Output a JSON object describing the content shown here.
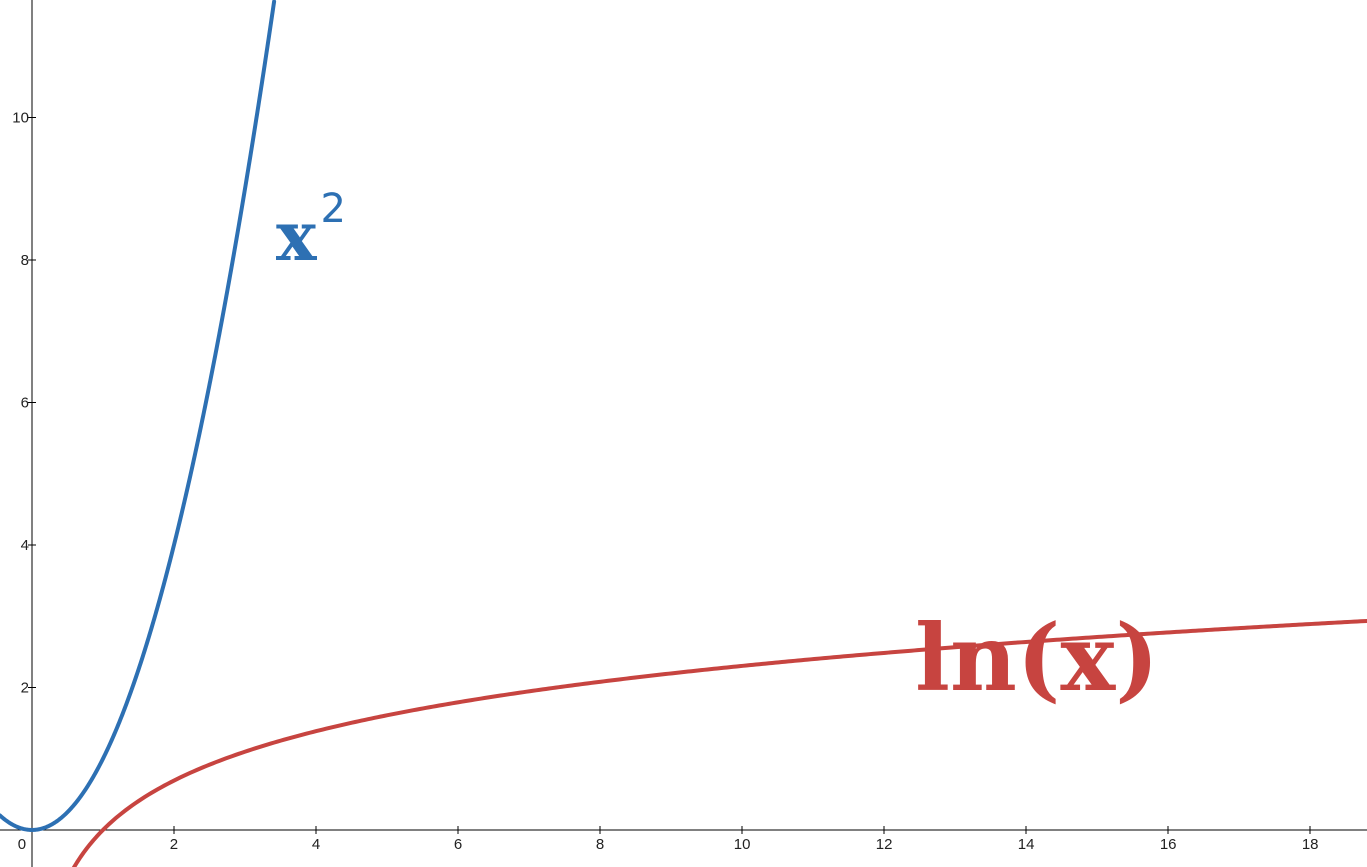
{
  "chart_data": {
    "type": "line",
    "title": "",
    "xlabel": "",
    "ylabel": "",
    "xlim": [
      -0.45,
      18.8
    ],
    "ylim": [
      -0.52,
      11.65
    ],
    "x_ticks": [
      "0",
      "2",
      "4",
      "6",
      "8",
      "10",
      "12",
      "14",
      "16",
      "18"
    ],
    "y_ticks": [
      "2",
      "4",
      "6",
      "8",
      "10"
    ],
    "grid": false,
    "legend": "none",
    "series": [
      {
        "label_base": "x",
        "label_sup": "2",
        "function": "x^2",
        "color": "#2d70b3",
        "x": [
          -0.45,
          -0.3,
          -0.15,
          0,
          0.25,
          0.5,
          0.75,
          1,
          1.25,
          1.5,
          1.75,
          2,
          2.25,
          2.5,
          2.75,
          3,
          3.25,
          3.41
        ],
        "y": [
          0.2,
          0.09,
          0.02,
          0,
          0.06,
          0.25,
          0.56,
          1,
          1.56,
          2.25,
          3.06,
          4,
          5.06,
          6.25,
          7.56,
          9,
          10.56,
          11.63
        ]
      },
      {
        "label": "ln(x)",
        "function": "ln(x)",
        "color": "#c74440",
        "x": [
          0.59,
          0.7,
          0.8,
          1,
          1.5,
          2,
          3,
          4,
          5,
          6,
          8,
          10,
          12,
          14,
          16,
          18,
          18.8
        ],
        "y": [
          -0.53,
          -0.36,
          -0.22,
          0,
          0.41,
          0.69,
          1.1,
          1.39,
          1.61,
          1.79,
          2.08,
          2.3,
          2.48,
          2.64,
          2.77,
          2.89,
          2.93
        ]
      }
    ]
  }
}
